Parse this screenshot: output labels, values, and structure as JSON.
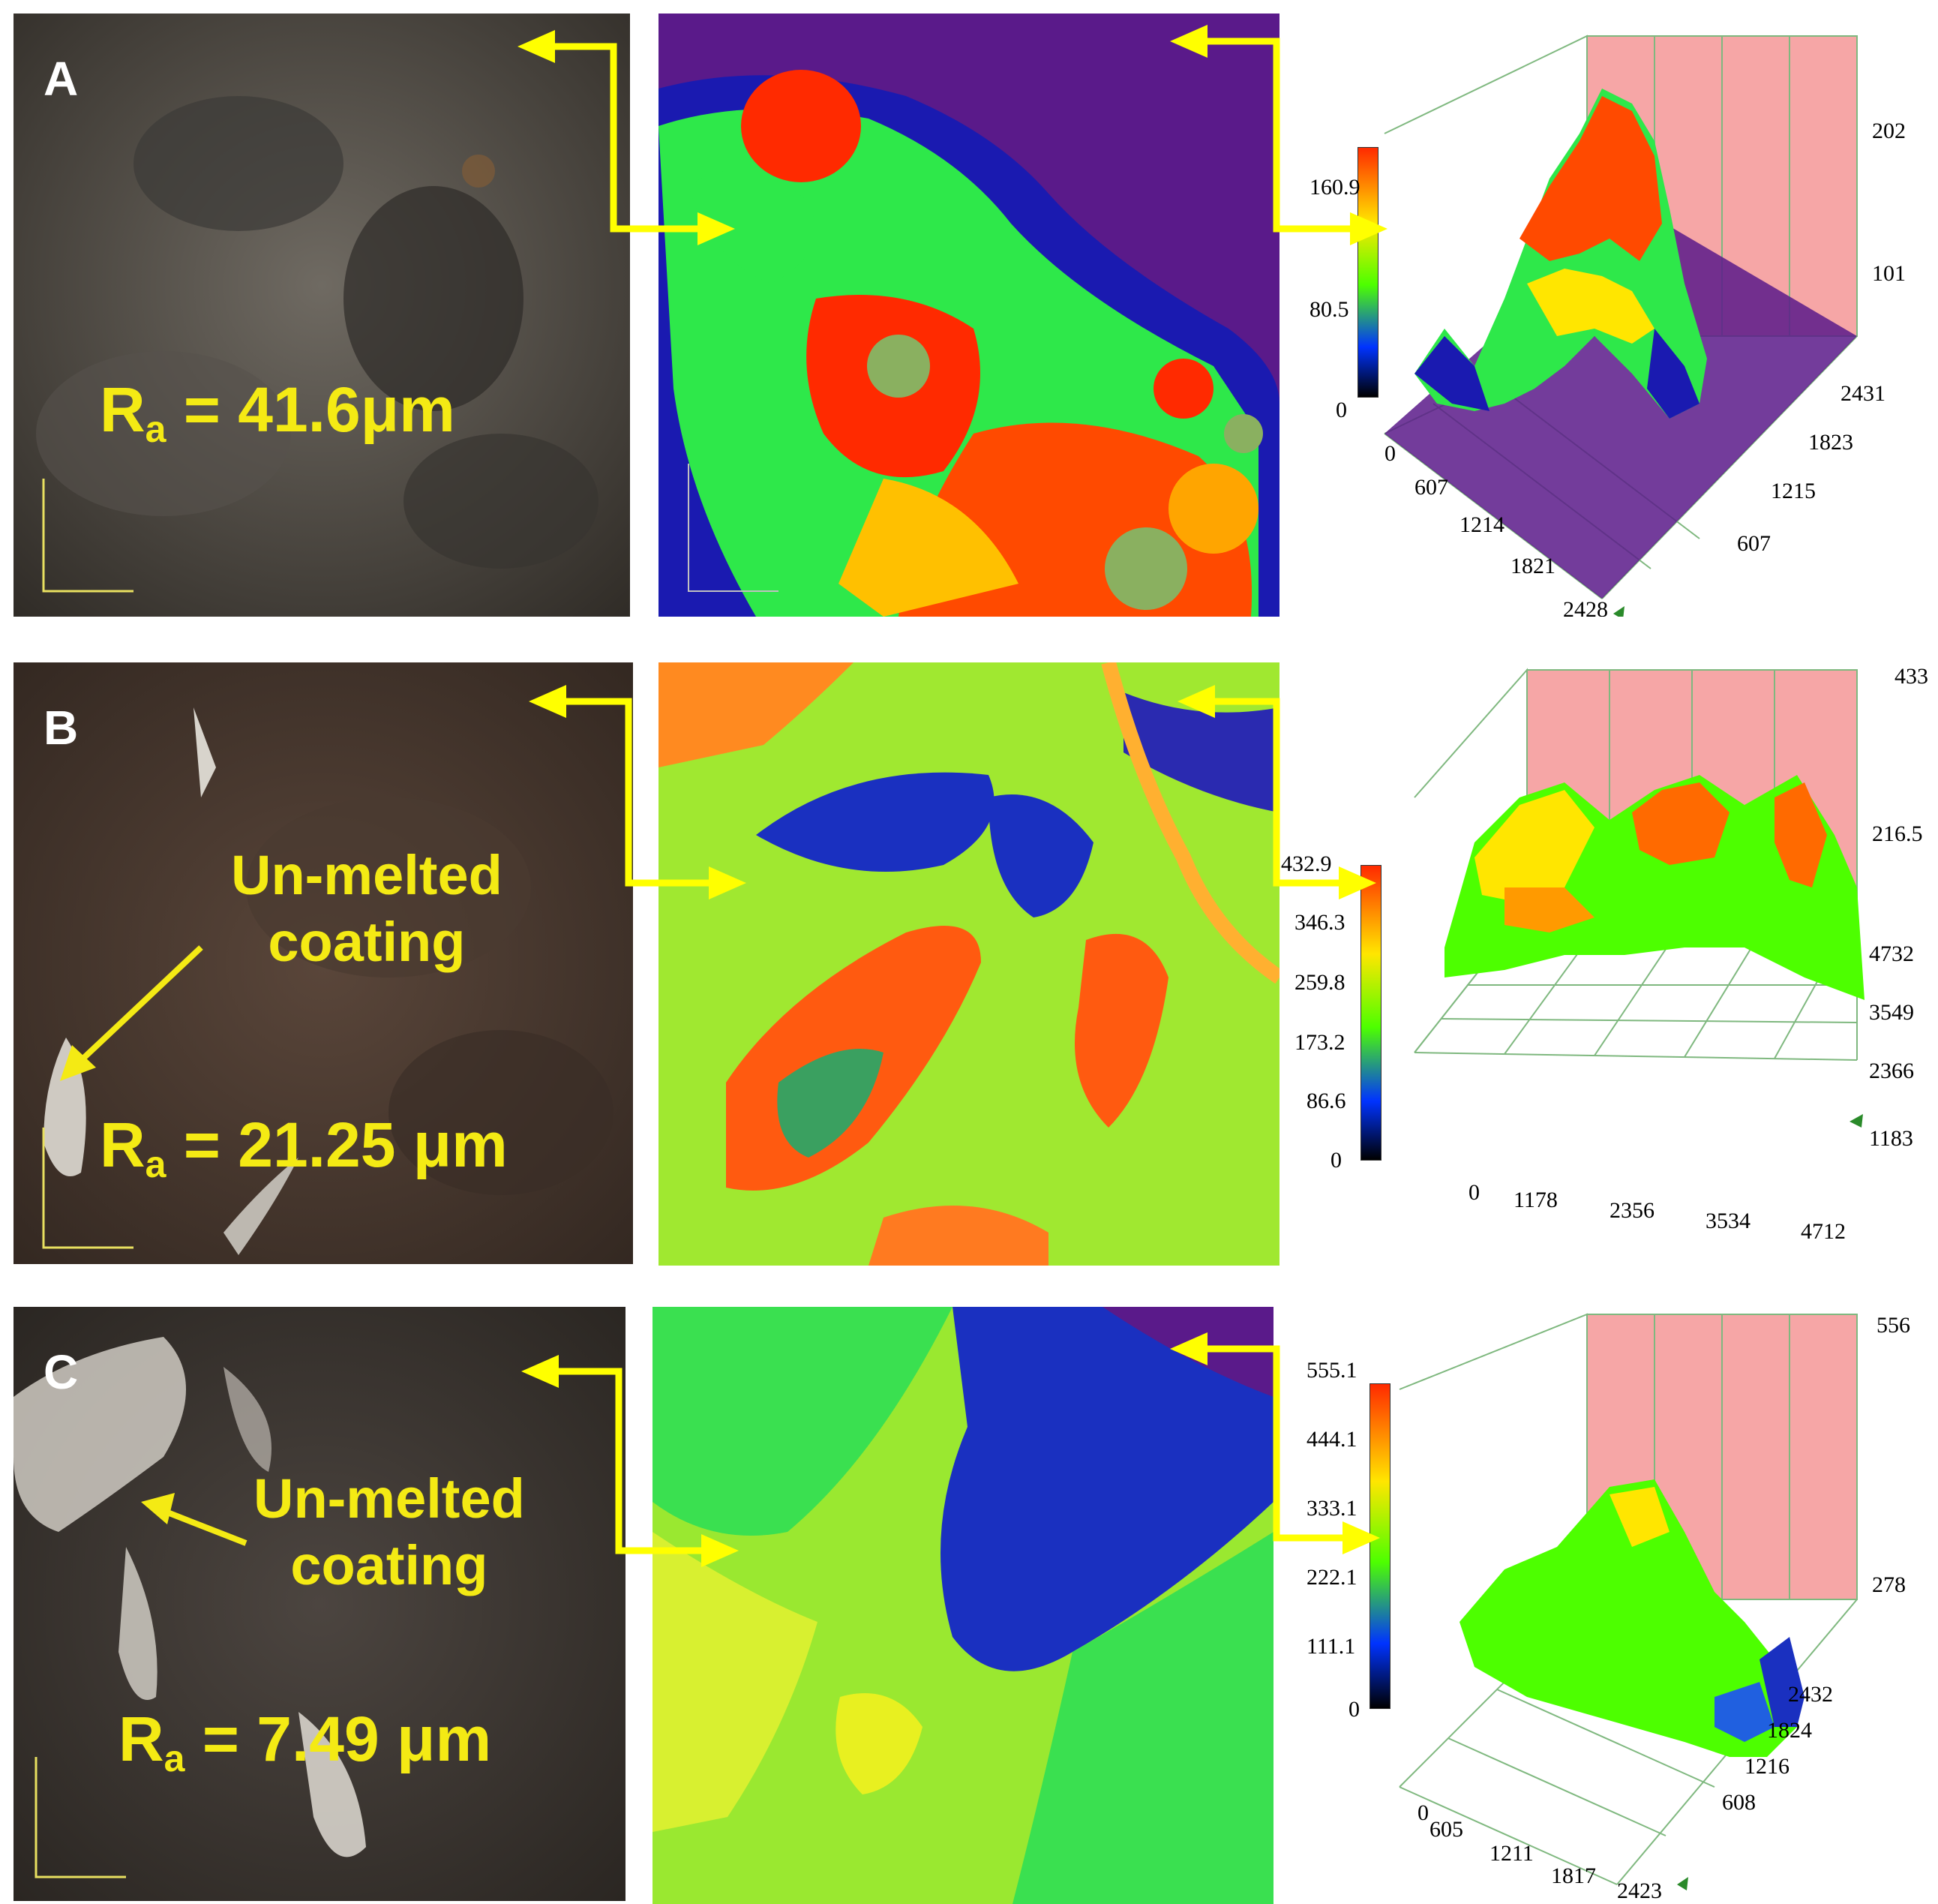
{
  "rows": [
    {
      "label": "A",
      "ra": {
        "prefix": "R",
        "sub": "a",
        "value": "= 41.6μm"
      },
      "plot3d": {
        "colorbar_ticks": [
          "160.9",
          "80.5",
          "0"
        ],
        "z_ticks": [
          "202",
          "101"
        ],
        "x_ticks": [
          "0",
          "607",
          "1214",
          "1821",
          "2428"
        ],
        "y_ticks": [
          "2431",
          "1823",
          "1215",
          "607"
        ]
      }
    },
    {
      "label": "B",
      "annotation": {
        "line1": "Un-melted",
        "line2": "coating"
      },
      "ra": {
        "prefix": "R",
        "sub": "a",
        "value": "= 21.25 μm"
      },
      "plot3d": {
        "colorbar_ticks": [
          "432.9",
          "346.3",
          "259.8",
          "173.2",
          "86.6",
          "0"
        ],
        "z_ticks": [
          "433",
          "216.5"
        ],
        "x_ticks": [
          "0",
          "1178",
          "2356",
          "3534",
          "4712"
        ],
        "y_ticks": [
          "4732",
          "3549",
          "2366",
          "1183"
        ]
      }
    },
    {
      "label": "C",
      "annotation": {
        "line1": "Un-melted",
        "line2": "coating"
      },
      "ra": {
        "prefix": "R",
        "sub": "a",
        "value": "= 7.49 μm"
      },
      "plot3d": {
        "colorbar_ticks": [
          "555.1",
          "444.1",
          "333.1",
          "222.1",
          "111.1",
          "0"
        ],
        "z_ticks": [
          "556",
          "278"
        ],
        "x_ticks": [
          "0",
          "605",
          "1211",
          "1817",
          "2423"
        ],
        "y_ticks": [
          "2432",
          "1824",
          "1216",
          "608"
        ]
      }
    }
  ],
  "colors": {
    "annotation": "#f4ea14",
    "arrow": "#ffff00",
    "wall": "#f6a6a6"
  }
}
